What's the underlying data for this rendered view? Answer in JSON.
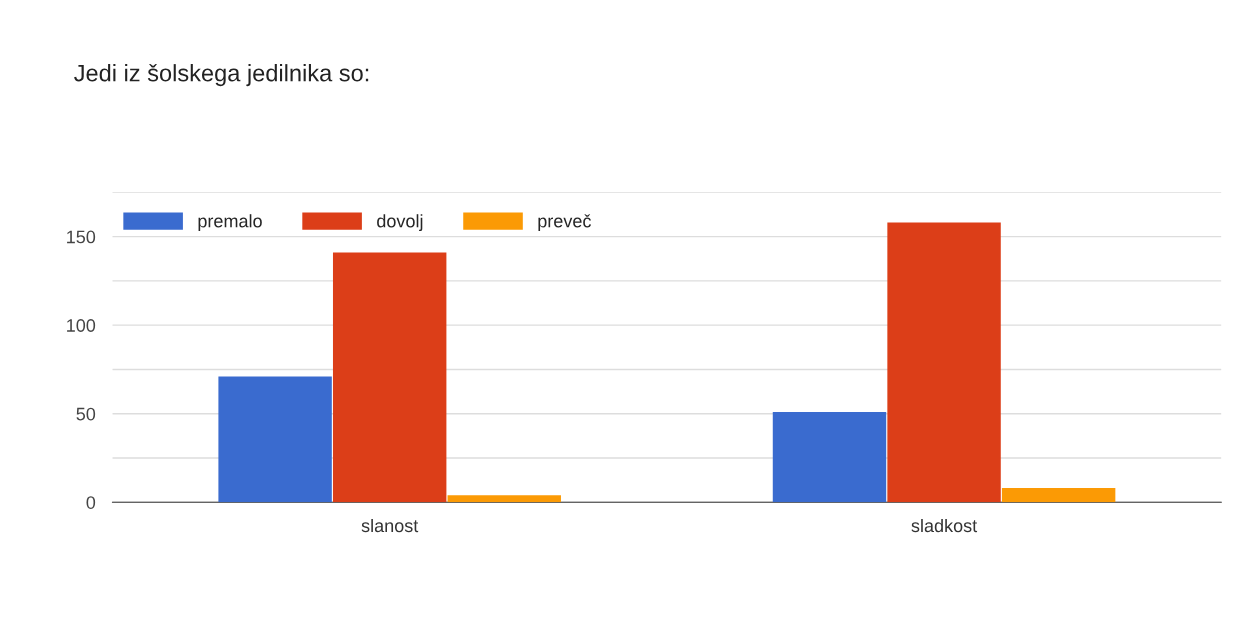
{
  "chart_data": {
    "type": "bar",
    "title": "Jedi iz šolskega jedilnika so:",
    "categories": [
      "slanost",
      "sladkost"
    ],
    "series": [
      {
        "name": "premalo",
        "color": "#3a6bcf",
        "values": [
          71,
          51
        ]
      },
      {
        "name": "dovolj",
        "color": "#dc3e18",
        "values": [
          141,
          158
        ]
      },
      {
        "name": "preveč",
        "color": "#fb9a05",
        "values": [
          4,
          8
        ]
      }
    ],
    "ylim": [
      0,
      175
    ],
    "yticks": [
      0,
      {
        "value": 25,
        "label": null
      },
      50,
      {
        "value": 75,
        "label": null
      },
      100,
      {
        "value": 125,
        "label": null
      },
      150,
      {
        "value": 175,
        "label": null
      }
    ],
    "grid": "y",
    "legend": "top left"
  }
}
